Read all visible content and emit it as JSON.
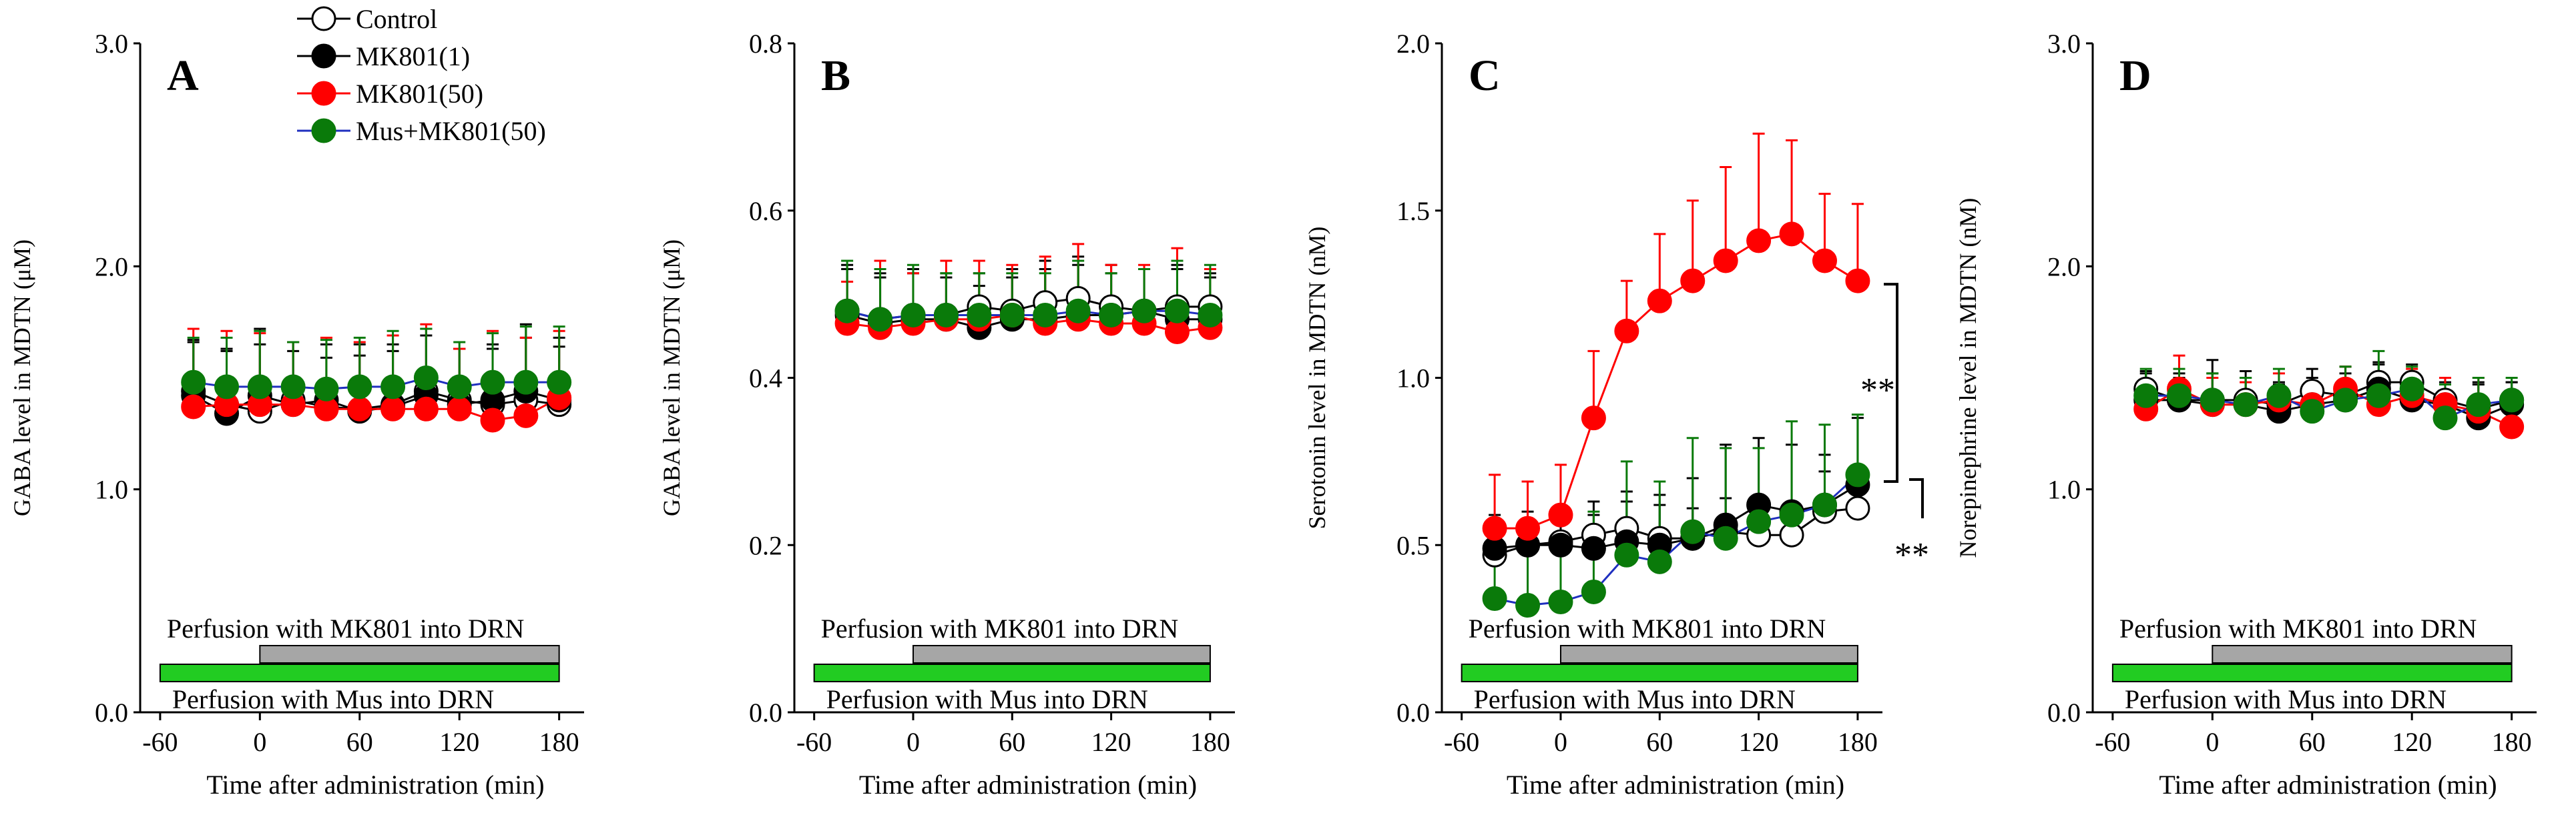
{
  "legend": [
    {
      "label": "Control",
      "fill": "#ffffff",
      "stroke": "#000000",
      "line": "#000000"
    },
    {
      "label": "MK801(1)",
      "fill": "#000000",
      "stroke": "#000000",
      "line": "#000000"
    },
    {
      "label": "MK801(50)",
      "fill": "#ff0000",
      "stroke": "#ff0000",
      "line": "#ff0000"
    },
    {
      "label": "Mus+MK801(50)",
      "fill": "#0a7a0a",
      "stroke": "#0a7a0a",
      "line": "#1f2fbf"
    }
  ],
  "chart_data": [
    {
      "type": "line",
      "panel": "A",
      "title": "",
      "ylabel": "GABA level in MDTN (μM)",
      "xlabel": "Time after administration (min)",
      "ylim": [
        0,
        3
      ],
      "yticks": [
        0,
        1,
        2,
        3
      ],
      "ytick_labels": [
        "0.0",
        "1.0",
        "2.0",
        "3.0"
      ],
      "xlim": [
        -72,
        195
      ],
      "xticks": [
        -60,
        0,
        60,
        120,
        180
      ],
      "xtick_labels": [
        "-60",
        "0",
        "60",
        "120",
        "180"
      ],
      "x": [
        -40,
        -20,
        0,
        20,
        40,
        60,
        80,
        100,
        120,
        140,
        160,
        180
      ],
      "series": [
        {
          "name": "Control",
          "values": [
            1.44,
            1.38,
            1.35,
            1.4,
            1.37,
            1.36,
            1.38,
            1.44,
            1.4,
            1.38,
            1.4,
            1.38
          ],
          "err": [
            0.22,
            0.25,
            0.3,
            0.22,
            0.22,
            0.24,
            0.24,
            0.25,
            0.23,
            0.25,
            0.28,
            0.26
          ]
        },
        {
          "name": "MK801(1)",
          "values": [
            1.42,
            1.34,
            1.42,
            1.38,
            1.4,
            1.35,
            1.37,
            1.42,
            1.38,
            1.4,
            1.44,
            1.4
          ],
          "err": [
            0.25,
            0.28,
            0.3,
            0.28,
            0.25,
            0.3,
            0.28,
            0.3,
            0.25,
            0.25,
            0.3,
            0.28
          ]
        },
        {
          "name": "MK801(50)",
          "values": [
            1.37,
            1.38,
            1.38,
            1.38,
            1.36,
            1.36,
            1.36,
            1.36,
            1.36,
            1.31,
            1.33,
            1.41
          ],
          "err": [
            0.35,
            0.33,
            0.32,
            0.28,
            0.32,
            0.3,
            0.33,
            0.38,
            0.27,
            0.4,
            0.35,
            0.3
          ]
        },
        {
          "name": "Mus+MK801(50)",
          "values": [
            1.48,
            1.46,
            1.46,
            1.46,
            1.45,
            1.46,
            1.46,
            1.5,
            1.46,
            1.48,
            1.48,
            1.48
          ],
          "err": [
            0.2,
            0.22,
            0.25,
            0.2,
            0.22,
            0.22,
            0.25,
            0.22,
            0.2,
            0.22,
            0.25,
            0.25
          ]
        }
      ],
      "bars": [
        {
          "label": "Perfusion with MK801 into DRN",
          "start": 0,
          "end": 180,
          "color": "#a6a6a6"
        },
        {
          "label": "Perfusion with Mus into DRN",
          "start": -60,
          "end": 180,
          "color": "#22cc22"
        }
      ]
    },
    {
      "type": "line",
      "panel": "B",
      "title": "",
      "ylabel": "GABA level in MDTN (μM)",
      "xlabel": "Time after administration (min)",
      "ylim": [
        0,
        0.8
      ],
      "yticks": [
        0,
        0.2,
        0.4,
        0.6,
        0.8
      ],
      "ytick_labels": [
        "0.0",
        "0.2",
        "0.4",
        "0.6",
        "0.8"
      ],
      "xlim": [
        -72,
        195
      ],
      "xticks": [
        -60,
        0,
        60,
        120,
        180
      ],
      "xtick_labels": [
        "-60",
        "0",
        "60",
        "120",
        "180"
      ],
      "x": [
        -40,
        -20,
        0,
        20,
        40,
        60,
        80,
        100,
        120,
        140,
        160,
        180
      ],
      "series": [
        {
          "name": "Control",
          "values": [
            0.48,
            0.47,
            0.475,
            0.475,
            0.485,
            0.48,
            0.49,
            0.495,
            0.485,
            0.48,
            0.485,
            0.485
          ],
          "err": [
            0.05,
            0.05,
            0.05,
            0.05,
            0.04,
            0.05,
            0.05,
            0.05,
            0.05,
            0.05,
            0.05,
            0.04
          ]
        },
        {
          "name": "MK801(1)",
          "values": [
            0.475,
            0.465,
            0.47,
            0.47,
            0.46,
            0.47,
            0.47,
            0.475,
            0.475,
            0.48,
            0.47,
            0.47
          ],
          "err": [
            0.06,
            0.06,
            0.06,
            0.05,
            0.05,
            0.05,
            0.06,
            0.06,
            0.05,
            0.05,
            0.06,
            0.05
          ]
        },
        {
          "name": "MK801(50)",
          "values": [
            0.465,
            0.46,
            0.465,
            0.47,
            0.47,
            0.475,
            0.465,
            0.47,
            0.465,
            0.465,
            0.455,
            0.46
          ],
          "err": [
            0.05,
            0.08,
            0.06,
            0.07,
            0.07,
            0.06,
            0.08,
            0.09,
            0.07,
            0.07,
            0.1,
            0.07
          ]
        },
        {
          "name": "Mus+MK801(50)",
          "values": [
            0.48,
            0.47,
            0.475,
            0.475,
            0.475,
            0.475,
            0.475,
            0.48,
            0.475,
            0.48,
            0.48,
            0.475
          ],
          "err": [
            0.06,
            0.06,
            0.06,
            0.05,
            0.05,
            0.05,
            0.05,
            0.06,
            0.05,
            0.05,
            0.06,
            0.06
          ]
        }
      ],
      "bars": [
        {
          "label": "Perfusion with MK801 into DRN",
          "start": 0,
          "end": 180,
          "color": "#a6a6a6"
        },
        {
          "label": "Perfusion with Mus into DRN",
          "start": -60,
          "end": 180,
          "color": "#22cc22"
        }
      ]
    },
    {
      "type": "line",
      "panel": "C",
      "title": "",
      "ylabel": "Serotonin level in MDTN (nM)",
      "xlabel": "Time after administration (min)",
      "ylim": [
        0,
        2
      ],
      "yticks": [
        0,
        0.5,
        1,
        1.5,
        2
      ],
      "ytick_labels": [
        "0.0",
        "0.5",
        "1.0",
        "1.5",
        "2.0"
      ],
      "xlim": [
        -72,
        195
      ],
      "xticks": [
        -60,
        0,
        60,
        120,
        180
      ],
      "xtick_labels": [
        "-60",
        "0",
        "60",
        "120",
        "180"
      ],
      "x": [
        -40,
        -20,
        0,
        20,
        40,
        60,
        80,
        100,
        120,
        140,
        160,
        180
      ],
      "series": [
        {
          "name": "Control",
          "values": [
            0.47,
            0.5,
            0.51,
            0.53,
            0.55,
            0.52,
            0.52,
            0.54,
            0.53,
            0.53,
            0.6,
            0.61
          ],
          "err": [
            0.06,
            0.07,
            0.08,
            0.1,
            0.11,
            0.1,
            0.09,
            0.1,
            0.1,
            0.08,
            0.12,
            0.08
          ]
        },
        {
          "name": "MK801(1)",
          "values": [
            0.49,
            0.5,
            0.5,
            0.49,
            0.51,
            0.5,
            0.52,
            0.56,
            0.62,
            0.6,
            0.62,
            0.68
          ],
          "err": [
            0.1,
            0.1,
            0.1,
            0.1,
            0.12,
            0.15,
            0.18,
            0.24,
            0.2,
            0.2,
            0.15,
            0.2
          ]
        },
        {
          "name": "MK801(50)",
          "values": [
            0.55,
            0.55,
            0.59,
            0.88,
            1.14,
            1.23,
            1.29,
            1.35,
            1.41,
            1.43,
            1.35,
            1.29
          ],
          "err": [
            0.16,
            0.14,
            0.15,
            0.2,
            0.15,
            0.2,
            0.24,
            0.28,
            0.32,
            0.28,
            0.2,
            0.23
          ]
        },
        {
          "name": "Mus+MK801(50)",
          "values": [
            0.34,
            0.32,
            0.33,
            0.36,
            0.47,
            0.45,
            0.54,
            0.52,
            0.57,
            0.59,
            0.62,
            0.71
          ],
          "err": [
            0.18,
            0.2,
            0.18,
            0.24,
            0.28,
            0.24,
            0.28,
            0.27,
            0.22,
            0.28,
            0.24,
            0.18
          ]
        }
      ],
      "bars": [
        {
          "label": "Perfusion with MK801 into DRN",
          "start": 0,
          "end": 180,
          "color": "#a6a6a6"
        },
        {
          "label": "Perfusion with Mus into DRN",
          "start": -60,
          "end": 180,
          "color": "#22cc22"
        }
      ],
      "significance": [
        {
          "label": "**",
          "from_series": 2,
          "to_series": 1
        },
        {
          "label": "**",
          "from_series": 1,
          "to_series": 0
        }
      ]
    },
    {
      "type": "line",
      "panel": "D",
      "title": "",
      "ylabel": "Norepinephrine level in MDTN (nM)",
      "xlabel": "Time after administration (min)",
      "ylim": [
        0,
        3
      ],
      "yticks": [
        0,
        1,
        2,
        3
      ],
      "ytick_labels": [
        "0.0",
        "1.0",
        "2.0",
        "3.0"
      ],
      "xlim": [
        -72,
        195
      ],
      "xticks": [
        -60,
        0,
        60,
        120,
        180
      ],
      "xtick_labels": [
        "-60",
        "0",
        "60",
        "120",
        "180"
      ],
      "x": [
        -40,
        -20,
        0,
        20,
        40,
        60,
        80,
        100,
        120,
        140,
        160,
        180
      ],
      "series": [
        {
          "name": "Control",
          "values": [
            1.45,
            1.4,
            1.4,
            1.4,
            1.38,
            1.44,
            1.42,
            1.48,
            1.48,
            1.4,
            1.36,
            1.4
          ],
          "err": [
            0.08,
            0.1,
            0.12,
            0.1,
            0.1,
            0.1,
            0.1,
            0.08,
            0.08,
            0.1,
            0.12,
            0.08
          ]
        },
        {
          "name": "MK801(1)",
          "values": [
            1.4,
            1.4,
            1.38,
            1.38,
            1.35,
            1.38,
            1.4,
            1.45,
            1.4,
            1.38,
            1.32,
            1.38
          ],
          "err": [
            0.12,
            0.12,
            0.2,
            0.15,
            0.12,
            0.12,
            0.15,
            0.12,
            0.1,
            0.1,
            0.15,
            0.1
          ]
        },
        {
          "name": "MK801(50)",
          "values": [
            1.36,
            1.45,
            1.38,
            1.38,
            1.4,
            1.38,
            1.45,
            1.38,
            1.42,
            1.38,
            1.35,
            1.28
          ],
          "err": [
            0.08,
            0.15,
            0.12,
            0.1,
            0.12,
            0.1,
            0.1,
            0.12,
            0.12,
            0.12,
            0.15,
            0.12
          ]
        },
        {
          "name": "Mus+MK801(50)",
          "values": [
            1.42,
            1.42,
            1.4,
            1.38,
            1.42,
            1.35,
            1.4,
            1.42,
            1.45,
            1.32,
            1.38,
            1.4
          ],
          "err": [
            0.12,
            0.12,
            0.12,
            0.12,
            0.12,
            0.12,
            0.15,
            0.2,
            0.1,
            0.15,
            0.12,
            0.1
          ]
        }
      ],
      "bars": [
        {
          "label": "Perfusion with MK801 into DRN",
          "start": 0,
          "end": 180,
          "color": "#a6a6a6"
        },
        {
          "label": "Perfusion with Mus into DRN",
          "start": -60,
          "end": 180,
          "color": "#22cc22"
        }
      ]
    }
  ]
}
